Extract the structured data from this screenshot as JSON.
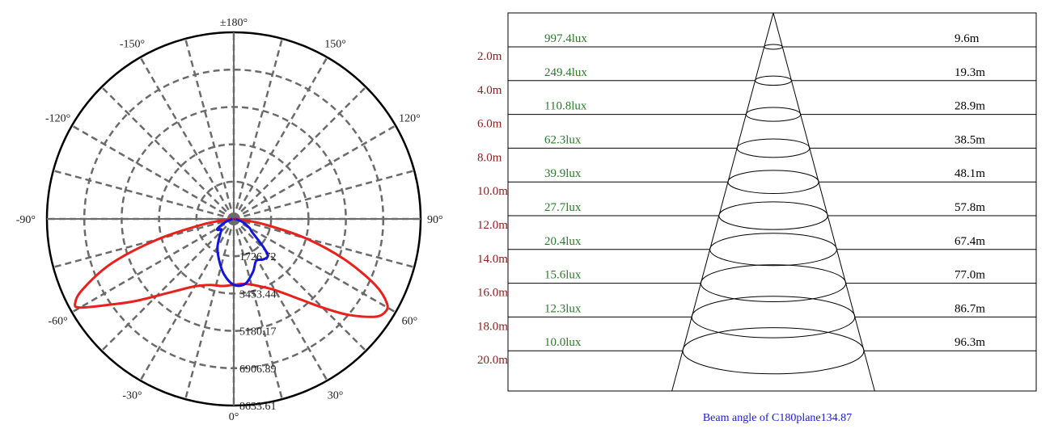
{
  "chart_data": [
    {
      "type": "polar",
      "angle_labels": [
        {
          "deg": 180,
          "text": "±180°"
        },
        {
          "deg": -150,
          "text": "-150°"
        },
        {
          "deg": 150,
          "text": "150°"
        },
        {
          "deg": -120,
          "text": "-120°"
        },
        {
          "deg": 120,
          "text": "120°"
        },
        {
          "deg": -90,
          "text": "-90°"
        },
        {
          "deg": 90,
          "text": "90°"
        },
        {
          "deg": -60,
          "text": "-60°"
        },
        {
          "deg": 60,
          "text": "60°"
        },
        {
          "deg": -30,
          "text": "-30°"
        },
        {
          "deg": 30,
          "text": "30°"
        },
        {
          "deg": 0,
          "text": "0°"
        }
      ],
      "rlim": [
        0,
        8633.61
      ],
      "radial_ticks": [
        {
          "value": 1726.72,
          "label": "1726.72"
        },
        {
          "value": 3453.44,
          "label": "3453.44"
        },
        {
          "value": 5180.17,
          "label": "5180.17"
        },
        {
          "value": 6906.89,
          "label": "6906.89"
        },
        {
          "value": 8633.61,
          "label": "8633.61"
        }
      ],
      "grid": true,
      "series": [
        {
          "color": "#e8211c",
          "points": [
            [
              -90,
              0
            ],
            [
              -85,
              200
            ],
            [
              -80,
              1400
            ],
            [
              -75,
              3600
            ],
            [
              -70,
              6000
            ],
            [
              -65,
              7700
            ],
            [
              -62,
              8300
            ],
            [
              -60,
              8200
            ],
            [
              -55,
              6900
            ],
            [
              -50,
              5900
            ],
            [
              -40,
              4400
            ],
            [
              -30,
              3600
            ],
            [
              -20,
              3250
            ],
            [
              -10,
              3150
            ],
            [
              0,
              3050
            ],
            [
              10,
              3050
            ],
            [
              20,
              3300
            ],
            [
              30,
              3800
            ],
            [
              40,
              4900
            ],
            [
              45,
              5800
            ],
            [
              50,
              6900
            ],
            [
              55,
              7900
            ],
            [
              58,
              8200
            ],
            [
              61,
              8100
            ],
            [
              65,
              7200
            ],
            [
              70,
              5400
            ],
            [
              75,
              3400
            ],
            [
              80,
              1400
            ],
            [
              85,
              250
            ],
            [
              90,
              0
            ]
          ]
        },
        {
          "color": "#1414e0",
          "points": [
            [
              -95,
              60
            ],
            [
              -80,
              100
            ],
            [
              -70,
              400
            ],
            [
              -60,
              850
            ],
            [
              -55,
              900
            ],
            [
              -50,
              750
            ],
            [
              -40,
              1000
            ],
            [
              -30,
              1500
            ],
            [
              -20,
              2000
            ],
            [
              -10,
              2600
            ],
            [
              0,
              3050
            ],
            [
              10,
              3050
            ],
            [
              20,
              2600
            ],
            [
              28,
              2200
            ],
            [
              35,
              2300
            ],
            [
              40,
              2350
            ],
            [
              43,
              2300
            ],
            [
              46,
              1950
            ],
            [
              50,
              1400
            ],
            [
              55,
              1000
            ],
            [
              60,
              850
            ],
            [
              70,
              450
            ],
            [
              80,
              120
            ],
            [
              90,
              50
            ],
            [
              100,
              40
            ]
          ]
        }
      ]
    },
    {
      "type": "table",
      "rows": [
        {
          "lux": "997.4lux",
          "distance": "2.0m",
          "diameter": "9.6m"
        },
        {
          "lux": "249.4lux",
          "distance": "4.0m",
          "diameter": "19.3m"
        },
        {
          "lux": "110.8lux",
          "distance": "6.0m",
          "diameter": "28.9m"
        },
        {
          "lux": "62.3lux",
          "distance": "8.0m",
          "diameter": "38.5m"
        },
        {
          "lux": "39.9lux",
          "distance": "10.0m",
          "diameter": "48.1m"
        },
        {
          "lux": "27.7lux",
          "distance": "12.0m",
          "diameter": "57.8m"
        },
        {
          "lux": "20.4lux",
          "distance": "14.0m",
          "diameter": "67.4m"
        },
        {
          "lux": "15.6lux",
          "distance": "16.0m",
          "diameter": "77.0m"
        },
        {
          "lux": "12.3lux",
          "distance": "18.0m",
          "diameter": "86.7m"
        },
        {
          "lux": "10.0lux",
          "distance": "20.0m",
          "diameter": "96.3m"
        }
      ],
      "caption": "Beam angle of C180plane134.87",
      "colors": {
        "lux": "#2a7a2a",
        "distance": "#8b2020",
        "diameter": "#000000",
        "caption": "#1a1ad0"
      }
    }
  ]
}
